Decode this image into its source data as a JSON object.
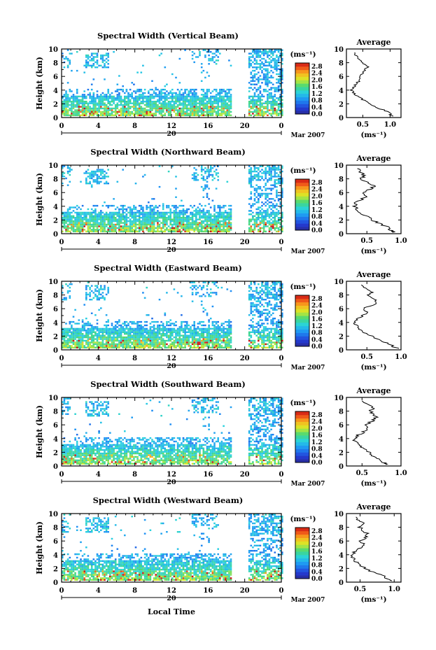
{
  "chart_data": [
    {
      "type": "heatmap",
      "title": "Spectral Width (Vertical Beam)",
      "ylabel": "Height (km)",
      "xticks": [
        "0",
        "4",
        "8",
        "12",
        "16",
        "20",
        "0"
      ],
      "yticks": [
        "0",
        "2",
        "4",
        "6",
        "8",
        "10"
      ],
      "ylim": [
        0,
        10
      ],
      "xlim": [
        0,
        24
      ],
      "date_label": "20",
      "month_label": "Mar 2007",
      "colorbar": {
        "unit": "(ms⁻¹)",
        "ticks": [
          "0.0",
          "0.4",
          "0.8",
          "1.2",
          "1.6",
          "2.0",
          "2.4",
          "2.8"
        ],
        "range": [
          0,
          3.0
        ]
      },
      "data_gap_hours": [
        18.5,
        20.2
      ],
      "profile": {
        "title": "Average",
        "unit": "(ms⁻¹)",
        "xticks": [
          "0.5",
          "1.0"
        ],
        "xlim": [
          0.2,
          1.2
        ],
        "height_km": [
          0.2,
          0.5,
          1.0,
          1.5,
          2.0,
          2.5,
          3.0,
          3.5,
          4.0,
          4.5,
          5.0,
          5.5,
          6.0,
          6.5,
          7.0,
          7.5,
          8.0,
          8.5,
          9.0,
          9.5
        ],
        "values": [
          1.05,
          1.0,
          0.92,
          0.75,
          0.62,
          0.52,
          0.42,
          0.35,
          0.3,
          0.33,
          0.4,
          0.45,
          0.42,
          0.5,
          0.55,
          0.6,
          0.5,
          0.45,
          0.38,
          0.35
        ]
      }
    },
    {
      "type": "heatmap",
      "title": "Spectral Width (Northward Beam)",
      "ylabel": "Height (km)",
      "xticks": [
        "0",
        "4",
        "8",
        "12",
        "16",
        "20",
        "0"
      ],
      "yticks": [
        "0",
        "2",
        "4",
        "6",
        "8",
        "10"
      ],
      "ylim": [
        0,
        10
      ],
      "xlim": [
        0,
        24
      ],
      "date_label": "20",
      "month_label": "Mar 2007",
      "colorbar": {
        "unit": "(ms⁻¹)",
        "ticks": [
          "0.0",
          "0.4",
          "0.8",
          "1.2",
          "1.6",
          "2.0",
          "2.4",
          "2.8"
        ],
        "range": [
          0,
          3.0
        ]
      },
      "data_gap_hours": [
        18.5,
        20.2
      ],
      "profile": {
        "title": "Average",
        "unit": "(ms⁻¹)",
        "xticks": [
          "0.5",
          "1.0"
        ],
        "xlim": [
          0.2,
          1.0
        ],
        "height_km": [
          0.2,
          0.5,
          1.0,
          1.5,
          2.0,
          2.5,
          3.0,
          3.5,
          4.0,
          4.5,
          5.0,
          5.5,
          6.0,
          6.5,
          7.0,
          7.5,
          8.0,
          8.5,
          9.0,
          9.5
        ],
        "values": [
          0.9,
          0.85,
          0.8,
          0.68,
          0.58,
          0.5,
          0.42,
          0.36,
          0.32,
          0.34,
          0.42,
          0.5,
          0.45,
          0.55,
          0.62,
          0.5,
          0.42,
          0.46,
          0.4,
          0.36
        ]
      }
    },
    {
      "type": "heatmap",
      "title": "Spectral Width (Eastward Beam)",
      "ylabel": "Height (km)",
      "xticks": [
        "0",
        "4",
        "8",
        "12",
        "16",
        "20",
        "0"
      ],
      "yticks": [
        "0",
        "2",
        "4",
        "6",
        "8",
        "10"
      ],
      "ylim": [
        0,
        10
      ],
      "xlim": [
        0,
        24
      ],
      "date_label": "20",
      "month_label": "Mar 2007",
      "colorbar": {
        "unit": "(ms⁻¹)",
        "ticks": [
          "0.0",
          "0.4",
          "0.8",
          "1.2",
          "1.6",
          "2.0",
          "2.4",
          "2.8"
        ],
        "range": [
          0,
          3.0
        ]
      },
      "data_gap_hours": [
        18.5,
        20.2
      ],
      "profile": {
        "title": "Average",
        "unit": "(ms⁻¹)",
        "xticks": [
          "0.5",
          "1.0"
        ],
        "xlim": [
          0.2,
          1.0
        ],
        "height_km": [
          0.2,
          0.5,
          1.0,
          1.5,
          2.0,
          2.5,
          3.0,
          3.5,
          4.0,
          4.5,
          5.0,
          5.5,
          6.0,
          6.5,
          7.0,
          7.5,
          8.0,
          8.5,
          9.0,
          9.5
        ],
        "values": [
          0.95,
          0.88,
          0.8,
          0.66,
          0.56,
          0.48,
          0.4,
          0.35,
          0.32,
          0.36,
          0.44,
          0.52,
          0.44,
          0.58,
          0.66,
          0.6,
          0.52,
          0.58,
          0.48,
          0.42
        ]
      }
    },
    {
      "type": "heatmap",
      "title": "Spectral Width (Southward Beam)",
      "ylabel": "Height (km)",
      "xticks": [
        "0",
        "4",
        "8",
        "12",
        "16",
        "20",
        "0"
      ],
      "yticks": [
        "0",
        "2",
        "4",
        "6",
        "8",
        "10"
      ],
      "ylim": [
        0,
        10
      ],
      "xlim": [
        0,
        24
      ],
      "date_label": "20",
      "month_label": "Mar 2007",
      "colorbar": {
        "unit": "(ms⁻¹)",
        "ticks": [
          "0.0",
          "0.4",
          "0.8",
          "1.2",
          "1.6",
          "2.0",
          "2.4",
          "2.8"
        ],
        "range": [
          0,
          3.0
        ]
      },
      "data_gap_hours": [
        18.5,
        20.2
      ],
      "profile": {
        "title": "Average",
        "unit": "(ms⁻¹)",
        "xticks": [
          "0.5",
          "1.0"
        ],
        "xlim": [
          0.3,
          1.0
        ],
        "height_km": [
          0.2,
          0.5,
          1.0,
          1.5,
          2.0,
          2.5,
          3.0,
          3.5,
          4.0,
          4.5,
          5.0,
          5.5,
          6.0,
          6.5,
          7.0,
          7.5,
          8.0,
          8.5,
          9.0,
          9.5
        ],
        "values": [
          0.82,
          0.78,
          0.72,
          0.64,
          0.58,
          0.52,
          0.46,
          0.42,
          0.4,
          0.45,
          0.52,
          0.58,
          0.55,
          0.62,
          0.68,
          0.66,
          0.6,
          0.64,
          0.56,
          0.5
        ]
      }
    },
    {
      "type": "heatmap",
      "title": "Spectral Width (Westward Beam)",
      "ylabel": "Height (km)",
      "xlabel": "Local Time",
      "xticks": [
        "0",
        "4",
        "8",
        "12",
        "16",
        "20",
        "0"
      ],
      "yticks": [
        "0",
        "2",
        "4",
        "6",
        "8",
        "10"
      ],
      "ylim": [
        0,
        10
      ],
      "xlim": [
        0,
        24
      ],
      "date_label": "20",
      "month_label": "Mar 2007",
      "colorbar": {
        "unit": "(ms⁻¹)",
        "ticks": [
          "0.0",
          "0.4",
          "0.8",
          "1.2",
          "1.6",
          "2.0",
          "2.4",
          "2.8"
        ],
        "range": [
          0,
          3.0
        ]
      },
      "data_gap_hours": [
        18.5,
        20.2
      ],
      "profile": {
        "title": "Average",
        "unit": "(ms⁻¹)",
        "xticks": [
          "0.5",
          "1.0"
        ],
        "xlim": [
          0.3,
          1.1
        ],
        "height_km": [
          0.2,
          0.5,
          1.0,
          1.5,
          2.0,
          2.5,
          3.0,
          3.5,
          4.0,
          4.5,
          5.0,
          5.5,
          6.0,
          6.5,
          7.0,
          7.5,
          8.0,
          8.5,
          9.0,
          9.5
        ],
        "values": [
          0.95,
          0.9,
          0.82,
          0.68,
          0.58,
          0.5,
          0.44,
          0.4,
          0.38,
          0.42,
          0.5,
          0.56,
          0.5,
          0.58,
          0.62,
          0.55,
          0.5,
          0.56,
          0.48,
          0.44
        ]
      }
    }
  ]
}
